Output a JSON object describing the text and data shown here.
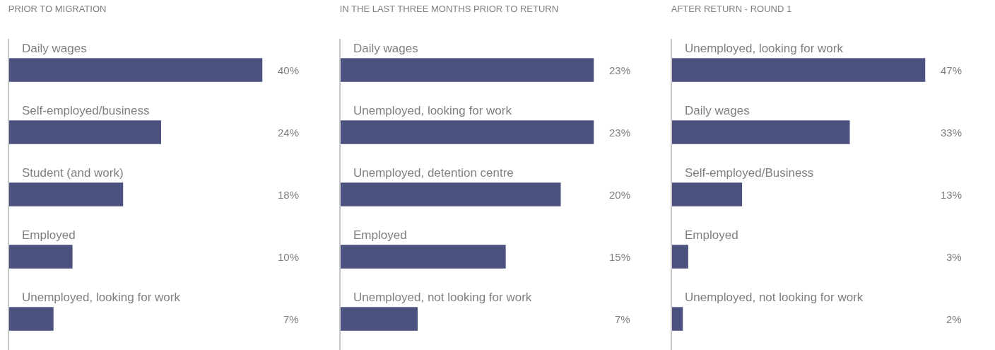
{
  "chart_data": [
    {
      "type": "bar",
      "orientation": "horizontal",
      "title": "PRIOR TO MIGRATION",
      "categories": [
        "Daily wages",
        "Self-employed/business",
        "Student (and work)",
        "Employed",
        "Unemployed, looking for work"
      ],
      "values": [
        40,
        24,
        18,
        10,
        7
      ],
      "value_labels": [
        "40%",
        "24%",
        "18%",
        "10%",
        "7%"
      ],
      "color": "#4b5280"
    },
    {
      "type": "bar",
      "orientation": "horizontal",
      "title": "IN THE LAST THREE MONTHS PRIOR TO RETURN",
      "categories": [
        "Daily wages",
        "Unemployed, looking for work",
        "Unemployed, detention centre",
        "Employed",
        "Unemployed, not looking for work"
      ],
      "values": [
        23,
        23,
        20,
        15,
        7
      ],
      "value_labels": [
        "23%",
        "23%",
        "20%",
        "15%",
        "7%"
      ],
      "color": "#4b5280"
    },
    {
      "type": "bar",
      "orientation": "horizontal",
      "title": "AFTER RETURN - ROUND 1",
      "categories": [
        "Unemployed, looking for work",
        "Daily wages",
        "Self-employed/Business",
        "Employed",
        "Unemployed, not looking for work"
      ],
      "values": [
        47,
        33,
        13,
        3,
        2
      ],
      "value_labels": [
        "47%",
        "33%",
        "13%",
        "3%",
        "2%"
      ],
      "color": "#4b5280"
    }
  ]
}
